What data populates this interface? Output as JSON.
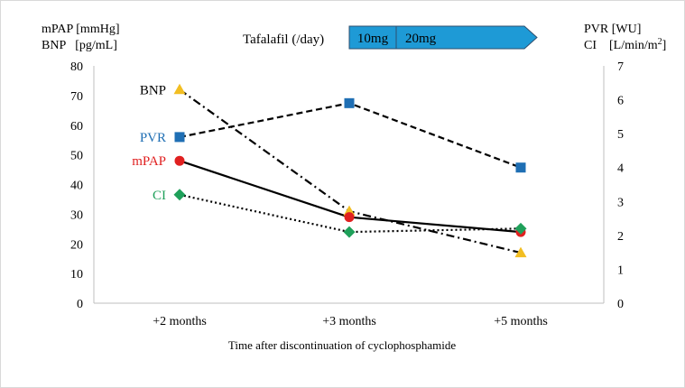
{
  "chart_data": {
    "type": "line",
    "left_axis_label_lines": [
      "mPAP [mmHg]",
      "BNP   [pg/mL]"
    ],
    "right_axis_label_lines": [
      "PVR [WU]",
      "CI    [L/min/m"
    ],
    "right_axis_label_superscript": "2",
    "right_axis_label_close": "]",
    "xlabel": "Time after discontinuation of cyclophosphamide",
    "categories": [
      "+2 months",
      "+3 months",
      "+5 months"
    ],
    "y_left": {
      "min": 0,
      "max": 80,
      "step": 10,
      "ticks": [
        "0",
        "10",
        "20",
        "30",
        "40",
        "50",
        "60",
        "70",
        "80"
      ]
    },
    "y_right": {
      "min": 0,
      "max": 7,
      "step": 1,
      "ticks": [
        "0",
        "1",
        "2",
        "3",
        "4",
        "5",
        "6",
        "7"
      ]
    },
    "grid": false,
    "legend": "inline labels at left of each series",
    "series": [
      {
        "name": "BNP",
        "axis": "left",
        "values": [
          72,
          31,
          17
        ],
        "marker": "triangle",
        "marker_color": "#F2BE22",
        "line_color": "#000000",
        "dash": "dash-dot",
        "label_color": "#000000"
      },
      {
        "name": "PVR",
        "axis": "right",
        "values": [
          4.9,
          5.9,
          4.0
        ],
        "marker": "square",
        "marker_color": "#1F6FB4",
        "line_color": "#000000",
        "dash": "dashed",
        "label_color": "#1F6FB4"
      },
      {
        "name": "mPAP",
        "axis": "left",
        "values": [
          48,
          29,
          24
        ],
        "marker": "circle",
        "marker_color": "#E02020",
        "line_color": "#000000",
        "dash": "solid",
        "label_color": "#E02020"
      },
      {
        "name": "CI",
        "axis": "right",
        "values": [
          3.2,
          2.1,
          2.2
        ],
        "marker": "diamond",
        "marker_color": "#1FA05A",
        "line_color": "#000000",
        "dash": "dotted",
        "label_color": "#1FA05A"
      }
    ],
    "dosing": {
      "label": "Tafalafil (/day)",
      "segments": [
        "10mg",
        "20mg"
      ],
      "color": "#1E9AD6"
    }
  }
}
